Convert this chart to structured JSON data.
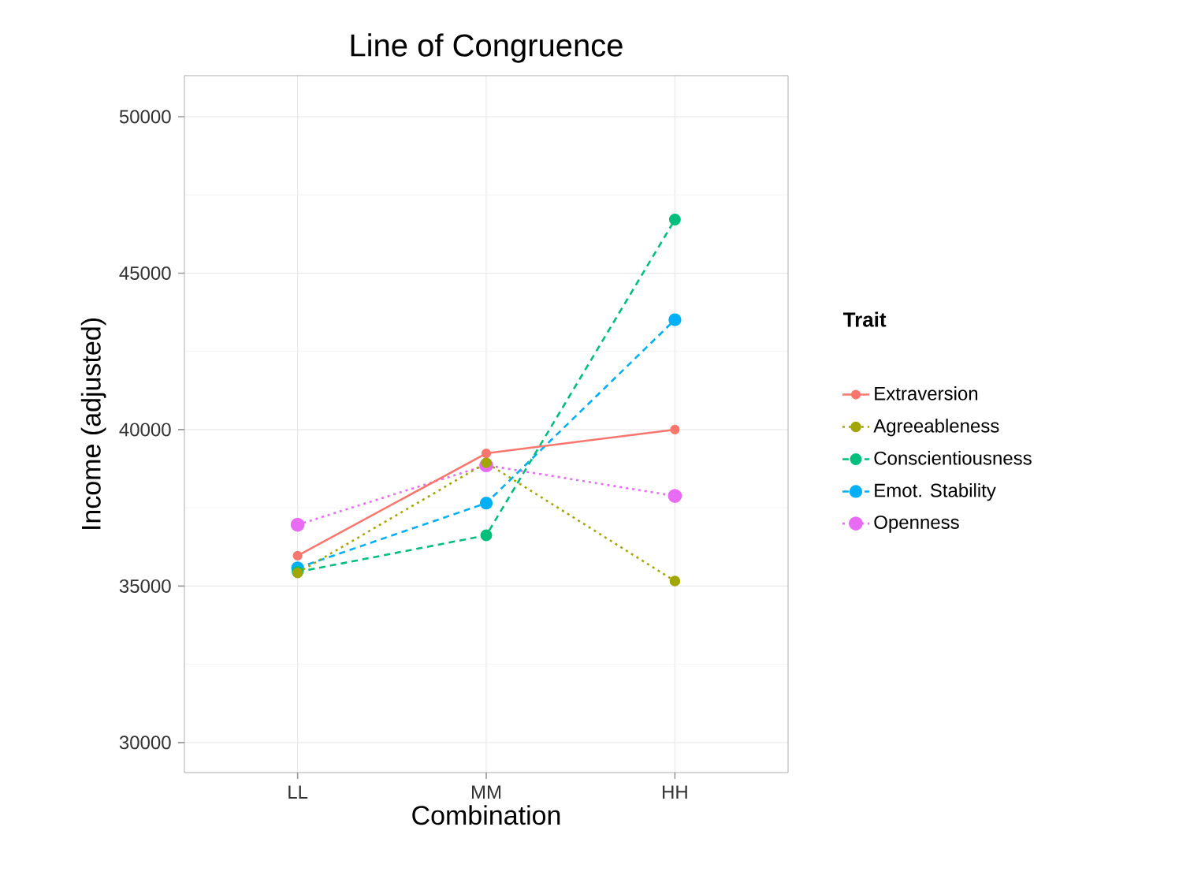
{
  "chart_data": {
    "type": "line",
    "title": "Line of Congruence",
    "xlabel": "Combination",
    "ylabel": "Income (adjusted)",
    "legend_title": "Trait",
    "categories": [
      "LL",
      "MM",
      "HH"
    ],
    "series": [
      {
        "name": "Extraversion",
        "color": "#f8766d",
        "values": [
          35970,
          39240,
          40000
        ],
        "line_style": "solid"
      },
      {
        "name": "Agreeableness",
        "color": "#a3a500",
        "values": [
          35420,
          38940,
          35160
        ],
        "line_style": "dotted"
      },
      {
        "name": "Conscientiousness",
        "color": "#00bf7d",
        "values": [
          35450,
          36620,
          46710
        ],
        "line_style": "dashed"
      },
      {
        "name": "Emot. Stability",
        "color": "#00b0f6",
        "values": [
          35580,
          37650,
          43510
        ],
        "line_style": "dashed"
      },
      {
        "name": "Openness",
        "color": "#e76bf3",
        "values": [
          36960,
          38860,
          37880
        ],
        "line_style": "dotted"
      }
    ],
    "ylim": [
      29040,
      51310
    ],
    "yticks": [
      30000,
      35000,
      40000,
      45000,
      50000
    ],
    "grid": true,
    "legend": "right",
    "marker": "circle"
  }
}
